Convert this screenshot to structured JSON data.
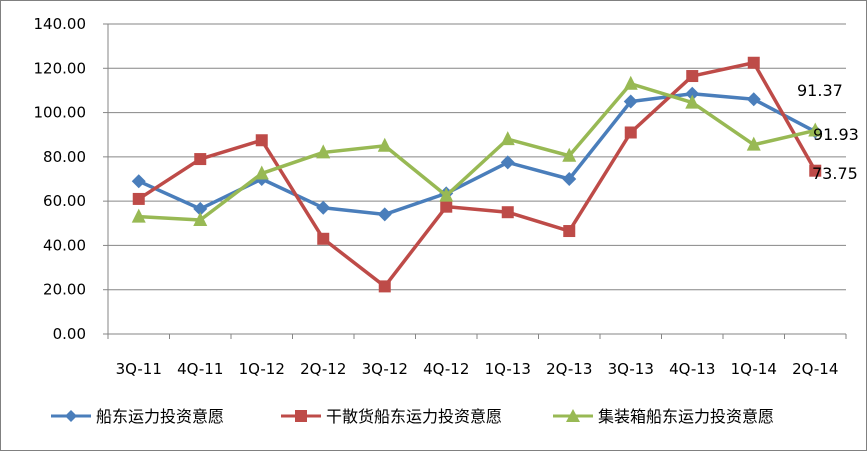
{
  "chart_data": {
    "type": "line",
    "title": "",
    "xlabel": "",
    "ylabel": "",
    "categories": [
      "3Q-11",
      "4Q-11",
      "1Q-12",
      "2Q-12",
      "3Q-12",
      "4Q-12",
      "1Q-13",
      "2Q-13",
      "3Q-13",
      "4Q-13",
      "1Q-14",
      "2Q-14"
    ],
    "ylim": [
      0,
      140
    ],
    "yticks": [
      "0.00",
      "20.00",
      "40.00",
      "60.00",
      "80.00",
      "100.00",
      "120.00",
      "140.00"
    ],
    "grid": "horizontal",
    "legend_position": "bottom",
    "series": [
      {
        "name": "船东运力投资意愿",
        "color": "#4a7ebb",
        "marker": "diamond",
        "values": [
          69.0,
          56.5,
          70.0,
          57.0,
          54.0,
          63.5,
          77.5,
          70.0,
          105.0,
          108.5,
          106.0,
          91.37
        ]
      },
      {
        "name": "干散货船东运力投资意愿",
        "color": "#be4b48",
        "marker": "square",
        "values": [
          61.0,
          79.0,
          87.5,
          43.0,
          21.5,
          57.5,
          55.0,
          46.5,
          91.0,
          116.5,
          122.5,
          73.75
        ]
      },
      {
        "name": "集装箱船东运力投资意愿",
        "color": "#98b954",
        "marker": "triangle",
        "values": [
          53.0,
          51.5,
          72.5,
          82.0,
          85.0,
          62.5,
          88.0,
          80.5,
          113.0,
          104.5,
          85.5,
          91.93
        ]
      }
    ],
    "annotations": [
      "91.37",
      "91.93",
      "73.75"
    ]
  }
}
